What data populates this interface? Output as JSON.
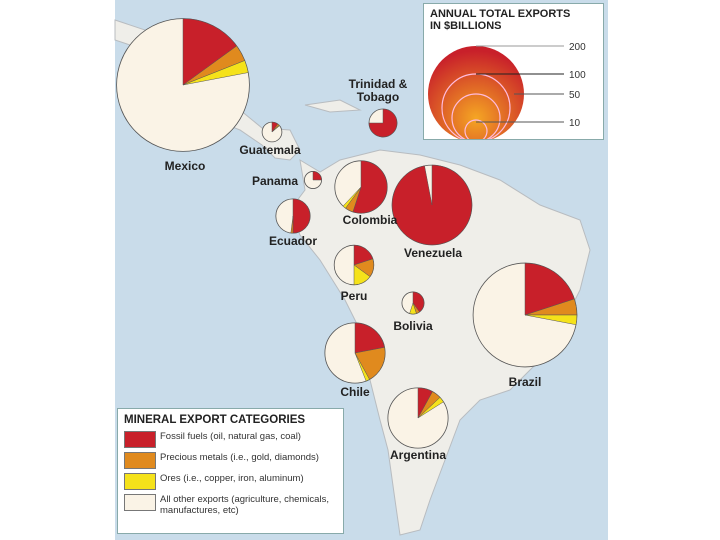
{
  "colors": {
    "fossil": "#c8202a",
    "precious": "#e08a1e",
    "ores": "#f5e21a",
    "other": "#faf3e6",
    "water": "#c9dcea",
    "land": "#efeee9"
  },
  "size_key": {
    "title_line1": "ANNUAL TOTAL EXPORTS",
    "title_line2": "IN $BILLIONS",
    "values": [
      "200",
      "100",
      "50",
      "10"
    ]
  },
  "legend": {
    "title": "MINERAL EXPORT CATEGORIES",
    "items": [
      {
        "key": "fossil",
        "label": "Fossil fuels (oil, natural gas, coal)"
      },
      {
        "key": "precious",
        "label": "Precious metals (i.e., gold, diamonds)"
      },
      {
        "key": "ores",
        "label": "Ores (i.e., copper, iron, aluminum)"
      },
      {
        "key": "other",
        "label": "All other exports (agriculture, chemicals, manufactures, etc)"
      }
    ]
  },
  "countries": [
    {
      "name": "Mexico",
      "total_billions": 180,
      "shares": {
        "fossil": 15,
        "precious": 4,
        "ores": 3
      }
    },
    {
      "name": "Guatemala",
      "total_billions": 4,
      "shares": {
        "fossil": 10,
        "precious": 3,
        "ores": 1
      }
    },
    {
      "name": "Trinidad & Tobago",
      "total_billions": 8,
      "shares": {
        "fossil": 75,
        "precious": 0,
        "ores": 0
      }
    },
    {
      "name": "Panama",
      "total_billions": 3,
      "shares": {
        "fossil": 25,
        "precious": 0,
        "ores": 0
      }
    },
    {
      "name": "Ecuador",
      "total_billions": 12,
      "shares": {
        "fossil": 50,
        "precious": 2,
        "ores": 0
      }
    },
    {
      "name": "Colombia",
      "total_billions": 28,
      "shares": {
        "fossil": 55,
        "precious": 5,
        "ores": 2
      }
    },
    {
      "name": "Venezuela",
      "total_billions": 65,
      "shares": {
        "fossil": 97,
        "precious": 0,
        "ores": 0
      }
    },
    {
      "name": "Peru",
      "total_billions": 16,
      "shares": {
        "fossil": 20,
        "precious": 15,
        "ores": 15
      }
    },
    {
      "name": "Bolivia",
      "total_billions": 5,
      "shares": {
        "fossil": 40,
        "precious": 5,
        "ores": 10
      }
    },
    {
      "name": "Chile",
      "total_billions": 37,
      "shares": {
        "fossil": 22,
        "precious": 20,
        "ores": 2
      }
    },
    {
      "name": "Brazil",
      "total_billions": 110,
      "shares": {
        "fossil": 20,
        "precious": 5,
        "ores": 3
      }
    },
    {
      "name": "Argentina",
      "total_billions": 37,
      "shares": {
        "fossil": 8,
        "precious": 5,
        "ores": 3
      }
    }
  ]
}
